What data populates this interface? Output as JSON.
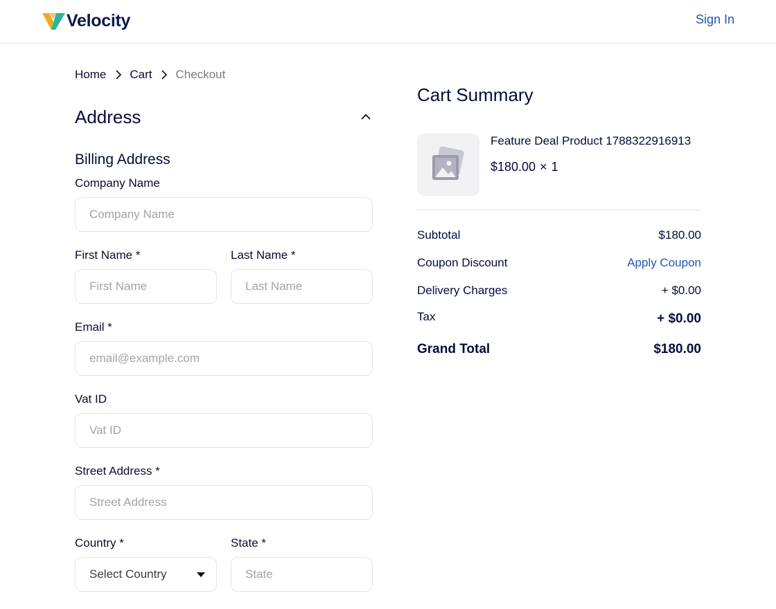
{
  "header": {
    "logo_text": "Velocity",
    "sign_in": "Sign In"
  },
  "breadcrumb": {
    "home": "Home",
    "cart": "Cart",
    "current": "Checkout"
  },
  "address": {
    "title": "Address",
    "billing_title": "Billing Address",
    "fields": {
      "company": {
        "label": "Company Name",
        "placeholder": "Company Name",
        "value": ""
      },
      "first_name": {
        "label": "First Name *",
        "placeholder": "First Name",
        "value": ""
      },
      "last_name": {
        "label": "Last Name *",
        "placeholder": "Last Name",
        "value": ""
      },
      "email": {
        "label": "Email *",
        "placeholder": "email@example.com",
        "value": ""
      },
      "vat": {
        "label": "Vat ID",
        "placeholder": "Vat ID",
        "value": ""
      },
      "street": {
        "label": "Street Address *",
        "placeholder": "Street Address",
        "value": ""
      },
      "country": {
        "label": "Country *",
        "selected": "Select Country"
      },
      "state": {
        "label": "State *",
        "placeholder": "State",
        "value": ""
      }
    }
  },
  "summary": {
    "title": "Cart Summary",
    "product": {
      "name": "Feature Deal Product 1788322916913",
      "price": "$180.00",
      "times": "×",
      "qty": "1"
    },
    "rows": {
      "subtotal": {
        "label": "Subtotal",
        "value": "$180.00"
      },
      "coupon": {
        "label": "Coupon Discount",
        "action": "Apply Coupon"
      },
      "delivery": {
        "label": "Delivery Charges",
        "value": "+ $0.00"
      },
      "tax": {
        "label": "Tax",
        "value": "+ $0.00"
      },
      "grand": {
        "label": "Grand Total",
        "value": "$180.00"
      }
    }
  },
  "colors": {
    "accent": "#2157b5",
    "text": "#060c3b",
    "muted": "#7a7a82",
    "border": "#e3e3e8"
  }
}
